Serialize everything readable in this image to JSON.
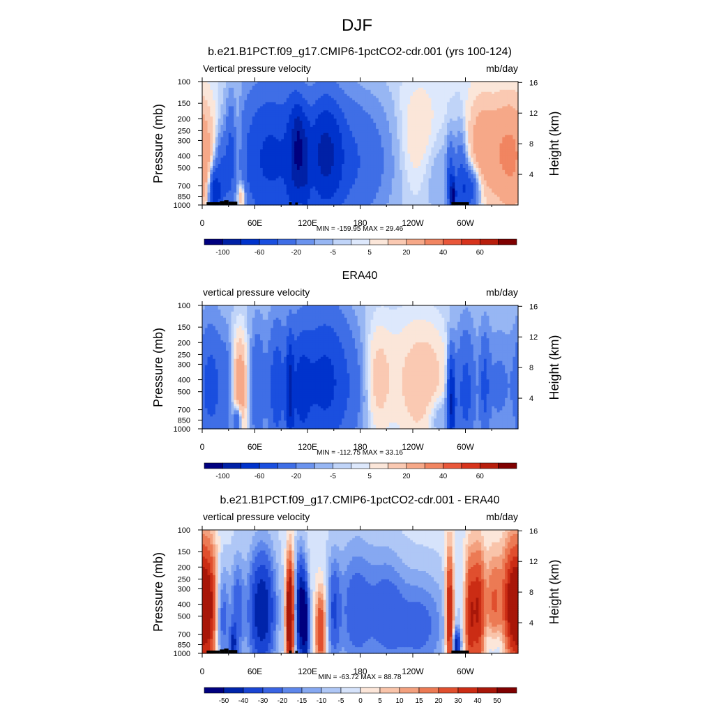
{
  "figure": {
    "season": "DJF"
  },
  "palettes": {
    "full": [
      "#00007f",
      "#0021a6",
      "#0033cc",
      "#1a4fdf",
      "#3f6ee6",
      "#6b93ee",
      "#97b6f3",
      "#c0d4f8",
      "#dde8fc",
      "#fbe6d9",
      "#fac9b2",
      "#f6a888",
      "#f18561",
      "#e9573a",
      "#d7331c",
      "#b81e0c",
      "#7f0000"
    ],
    "diff": [
      "#00007f",
      "#0024aa",
      "#1a45d3",
      "#3a64e3",
      "#5e87eb",
      "#86a8f1",
      "#afc7f6",
      "#d6e3fb",
      "#fce6d9",
      "#f9c4aa",
      "#f3a07e",
      "#ec7a54",
      "#e04f2e",
      "#cb2c14",
      "#a81709",
      "#7f0000"
    ]
  },
  "chart_data": [
    {
      "type": "heatmap",
      "title": "b.e21.B1PCT.f09_g17.CMIP6-1pctCO2-cdr.001 (yrs 100-124)",
      "left_label": "Vertical pressure velocity",
      "right_label": "mb/day",
      "ylabel": "Pressure (mb)",
      "ylabel_right": "Height (km)",
      "x_ticks": [
        "0",
        "60E",
        "120E",
        "180",
        "120W",
        "60W"
      ],
      "x_tick_lon": [
        0,
        60,
        120,
        180,
        240,
        300
      ],
      "xlim": [
        0,
        360
      ],
      "y_ticks": [
        "100",
        "150",
        "200",
        "250",
        "300",
        "400",
        "500",
        "700",
        "850",
        "1000"
      ],
      "y_tick_p": [
        100,
        150,
        200,
        250,
        300,
        400,
        500,
        700,
        850,
        1000
      ],
      "ylim": [
        100,
        1000
      ],
      "y_scale": "log",
      "height_ticks": [
        "16",
        "12",
        "8",
        "4"
      ],
      "height_tick_km": [
        16,
        12,
        8,
        4
      ],
      "minmax": "MIN = -159.95  MAX =  29.46",
      "colorbar": {
        "palette": "full",
        "labels": [
          "-100",
          "-60",
          "-20",
          "-5",
          "5",
          "20",
          "40",
          "60"
        ],
        "label_edges": [
          1,
          3,
          5,
          7,
          9,
          11,
          13,
          15
        ]
      },
      "topo": true,
      "field": {
        "base": 0,
        "features": [
          {
            "lon": 0,
            "w": 14,
            "p": 420,
            "pw": 0.75,
            "a": 18
          },
          {
            "lon": 14,
            "w": 4,
            "p": 820,
            "pw": 0.3,
            "a": -70
          },
          {
            "lon": 22,
            "w": 6,
            "p": 600,
            "pw": 0.55,
            "a": -35
          },
          {
            "lon": 33,
            "w": 4,
            "p": 380,
            "pw": 0.65,
            "a": -25
          },
          {
            "lon": 40,
            "w": 4,
            "p": 350,
            "pw": 0.7,
            "a": 12
          },
          {
            "lon": 45,
            "w": 3,
            "p": 870,
            "pw": 0.2,
            "a": 28
          },
          {
            "lon": 78,
            "w": 26,
            "p": 420,
            "pw": 0.95,
            "a": -55
          },
          {
            "lon": 104,
            "w": 6,
            "p": 420,
            "pw": 0.8,
            "a": -40
          },
          {
            "lon": 110,
            "w": 4,
            "p": 350,
            "pw": 0.5,
            "a": -80
          },
          {
            "lon": 118,
            "w": 4,
            "p": 500,
            "pw": 0.7,
            "a": -45
          },
          {
            "lon": 140,
            "w": 13,
            "p": 380,
            "pw": 0.7,
            "a": -70
          },
          {
            "lon": 165,
            "w": 28,
            "p": 450,
            "pw": 0.9,
            "a": -30
          },
          {
            "lon": 210,
            "w": 25,
            "p": 400,
            "pw": 0.8,
            "a": -6
          },
          {
            "lon": 245,
            "w": 18,
            "p": 300,
            "pw": 0.7,
            "a": 10
          },
          {
            "lon": 268,
            "w": 14,
            "p": 550,
            "pw": 0.6,
            "a": -8
          },
          {
            "lon": 283,
            "w": 3,
            "p": 650,
            "pw": 0.5,
            "a": -40
          },
          {
            "lon": 286,
            "w": 2,
            "p": 850,
            "pw": 0.2,
            "a": -120
          },
          {
            "lon": 295,
            "w": 5,
            "p": 600,
            "pw": 0.6,
            "a": -30
          },
          {
            "lon": 305,
            "w": 8,
            "p": 750,
            "pw": 0.3,
            "a": -45
          },
          {
            "lon": 318,
            "w": 12,
            "p": 350,
            "pw": 0.7,
            "a": 22
          },
          {
            "lon": 345,
            "w": 13,
            "p": 380,
            "pw": 0.7,
            "a": 22
          }
        ]
      }
    },
    {
      "type": "heatmap",
      "title": "ERA40",
      "left_label": "vertical pressure velocity",
      "right_label": "mb/day",
      "ylabel": "Pressure (mb)",
      "ylabel_right": "Height (km)",
      "x_ticks": [
        "0",
        "60E",
        "120E",
        "180",
        "120W",
        "60W"
      ],
      "x_tick_lon": [
        0,
        60,
        120,
        180,
        240,
        300
      ],
      "xlim": [
        0,
        360
      ],
      "y_ticks": [
        "100",
        "150",
        "200",
        "250",
        "300",
        "400",
        "500",
        "700",
        "850",
        "1000"
      ],
      "y_tick_p": [
        100,
        150,
        200,
        250,
        300,
        400,
        500,
        700,
        850,
        1000
      ],
      "ylim": [
        100,
        1000
      ],
      "y_scale": "log",
      "height_ticks": [
        "16",
        "12",
        "8",
        "4"
      ],
      "height_tick_km": [
        16,
        12,
        8,
        4
      ],
      "minmax": "MIN = -112.75  MAX =  33.16",
      "colorbar": {
        "palette": "full",
        "labels": [
          "-100",
          "-60",
          "-20",
          "-5",
          "5",
          "20",
          "40",
          "60"
        ],
        "label_edges": [
          1,
          3,
          5,
          7,
          9,
          11,
          13,
          15
        ]
      },
      "topo": false,
      "field": {
        "base": -3,
        "features": [
          {
            "lon": 10,
            "w": 10,
            "p": 450,
            "pw": 0.8,
            "a": -35
          },
          {
            "lon": 28,
            "w": 5,
            "p": 500,
            "pw": 0.7,
            "a": -15
          },
          {
            "lon": 43,
            "w": 6,
            "p": 450,
            "pw": 0.65,
            "a": 28
          },
          {
            "lon": 40,
            "w": 3,
            "p": 880,
            "pw": 0.2,
            "a": -40
          },
          {
            "lon": 63,
            "w": 6,
            "p": 450,
            "pw": 0.8,
            "a": -25
          },
          {
            "lon": 85,
            "w": 7,
            "p": 450,
            "pw": 0.8,
            "a": -40
          },
          {
            "lon": 100,
            "w": 3,
            "p": 500,
            "pw": 0.7,
            "a": -70
          },
          {
            "lon": 112,
            "w": 8,
            "p": 500,
            "pw": 0.8,
            "a": -40
          },
          {
            "lon": 140,
            "w": 20,
            "p": 420,
            "pw": 0.9,
            "a": -55
          },
          {
            "lon": 175,
            "w": 10,
            "p": 500,
            "pw": 0.7,
            "a": -8
          },
          {
            "lon": 200,
            "w": 10,
            "p": 400,
            "pw": 0.7,
            "a": 12
          },
          {
            "lon": 225,
            "w": 25,
            "p": 350,
            "pw": 0.9,
            "a": 5
          },
          {
            "lon": 255,
            "w": 20,
            "p": 450,
            "pw": 0.8,
            "a": 15
          },
          {
            "lon": 270,
            "w": 10,
            "p": 800,
            "pw": 0.3,
            "a": -12
          },
          {
            "lon": 284,
            "w": 3,
            "p": 600,
            "pw": 0.6,
            "a": -80
          },
          {
            "lon": 300,
            "w": 8,
            "p": 500,
            "pw": 0.8,
            "a": -35
          },
          {
            "lon": 322,
            "w": 4,
            "p": 450,
            "pw": 0.7,
            "a": -30
          },
          {
            "lon": 338,
            "w": 10,
            "p": 450,
            "pw": 0.7,
            "a": -15
          }
        ]
      }
    },
    {
      "type": "heatmap",
      "title": "b.e21.B1PCT.f09_g17.CMIP6-1pctCO2-cdr.001 - ERA40",
      "left_label": "vertical pressure velocity",
      "right_label": "mb/day",
      "ylabel": "Pressure (mb)",
      "ylabel_right": "Height (km)",
      "x_ticks": [
        "0",
        "60E",
        "120E",
        "180",
        "120W",
        "60W"
      ],
      "x_tick_lon": [
        0,
        60,
        120,
        180,
        240,
        300
      ],
      "xlim": [
        0,
        360
      ],
      "y_ticks": [
        "100",
        "150",
        "200",
        "250",
        "300",
        "400",
        "500",
        "700",
        "850",
        "1000"
      ],
      "y_tick_p": [
        100,
        150,
        200,
        250,
        300,
        400,
        500,
        700,
        850,
        1000
      ],
      "ylim": [
        100,
        1000
      ],
      "y_scale": "log",
      "height_ticks": [
        "16",
        "12",
        "8",
        "4"
      ],
      "height_tick_km": [
        16,
        12,
        8,
        4
      ],
      "minmax": "MIN = -63.72  MAX =  88.78",
      "colorbar": {
        "palette": "diff",
        "labels": [
          "-50",
          "-40",
          "-30",
          "-20",
          "-15",
          "-10",
          "-5",
          "0",
          "5",
          "10",
          "15",
          "20",
          "30",
          "40",
          "50"
        ],
        "label_edges": [
          1,
          2,
          3,
          4,
          5,
          6,
          7,
          8,
          9,
          10,
          11,
          12,
          13,
          14,
          15
        ]
      },
      "topo": true,
      "field": {
        "base": 0,
        "features": [
          {
            "lon": 6,
            "w": 9,
            "p": 420,
            "pw": 0.8,
            "a": 55
          },
          {
            "lon": 22,
            "w": 6,
            "p": 500,
            "pw": 0.7,
            "a": -28
          },
          {
            "lon": 40,
            "w": 5,
            "p": 450,
            "pw": 0.7,
            "a": -22
          },
          {
            "lon": 35,
            "w": 3,
            "p": 860,
            "pw": 0.25,
            "a": -30
          },
          {
            "lon": 68,
            "w": 11,
            "p": 450,
            "pw": 0.8,
            "a": -45
          },
          {
            "lon": 100,
            "w": 3,
            "p": 500,
            "pw": 0.7,
            "a": 80
          },
          {
            "lon": 112,
            "w": 4,
            "p": 450,
            "pw": 0.7,
            "a": -50
          },
          {
            "lon": 118,
            "w": 3,
            "p": 600,
            "pw": 0.6,
            "a": -40
          },
          {
            "lon": 135,
            "w": 4,
            "p": 650,
            "pw": 0.5,
            "a": 38
          },
          {
            "lon": 150,
            "w": 5,
            "p": 450,
            "pw": 0.7,
            "a": -22
          },
          {
            "lon": 175,
            "w": 15,
            "p": 450,
            "pw": 0.9,
            "a": -22
          },
          {
            "lon": 210,
            "w": 14,
            "p": 450,
            "pw": 0.8,
            "a": -18
          },
          {
            "lon": 248,
            "w": 22,
            "p": 600,
            "pw": 0.7,
            "a": -20
          },
          {
            "lon": 282,
            "w": 3,
            "p": 500,
            "pw": 0.8,
            "a": 55
          },
          {
            "lon": 290,
            "w": 3,
            "p": 850,
            "pw": 0.2,
            "a": -40
          },
          {
            "lon": 305,
            "w": 4,
            "p": 500,
            "pw": 0.8,
            "a": 40
          },
          {
            "lon": 315,
            "w": 5,
            "p": 450,
            "pw": 0.8,
            "a": 45
          },
          {
            "lon": 332,
            "w": 6,
            "p": 400,
            "pw": 0.7,
            "a": 25
          },
          {
            "lon": 352,
            "w": 8,
            "p": 400,
            "pw": 0.8,
            "a": 42
          },
          {
            "lon": 335,
            "w": 10,
            "p": 850,
            "pw": 0.3,
            "a": -12
          }
        ]
      }
    }
  ]
}
